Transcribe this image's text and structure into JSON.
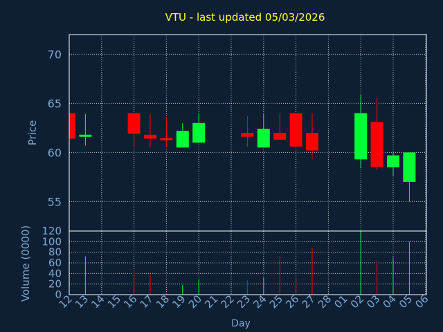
{
  "title": "VTU - last updated 05/03/2026",
  "colors": {
    "background": "#0f1f33",
    "frame": "#ffffff",
    "grid": "#ffffff",
    "axis_text": "#7fa8cf",
    "title": "#ffff33",
    "up": "#00ff33",
    "down": "#ff0000"
  },
  "chart_data": [
    {
      "type": "candlestick",
      "ylabel": "Price",
      "ylim": [
        52,
        72
      ],
      "yticks": [
        55,
        60,
        65,
        70
      ],
      "x_tick_labels": [
        "12",
        "13",
        "14",
        "15",
        "16",
        "17",
        "18",
        "19",
        "20",
        "21",
        "22",
        "23",
        "24",
        "25",
        "26",
        "27",
        "28",
        "01",
        "02",
        "03",
        "04",
        "05",
        "06"
      ],
      "candles": [
        {
          "day": "12",
          "open": 64.0,
          "close": 61.4,
          "high": 64.0,
          "low": 61.4
        },
        {
          "day": "13",
          "open": 61.6,
          "close": 61.8,
          "high": 63.9,
          "low": 60.7
        },
        {
          "day": "16",
          "open": 64.0,
          "close": 61.9,
          "high": 64.0,
          "low": 60.5
        },
        {
          "day": "17",
          "open": 61.8,
          "close": 61.4,
          "high": 63.9,
          "low": 60.5
        },
        {
          "day": "18",
          "open": 61.4,
          "close": 61.3,
          "high": 63.6,
          "low": 60.5
        },
        {
          "day": "19",
          "open": 60.5,
          "close": 62.2,
          "high": 63.0,
          "low": 60.5
        },
        {
          "day": "20",
          "open": 61.0,
          "close": 63.0,
          "high": 64.0,
          "low": 61.0
        },
        {
          "day": "23",
          "open": 62.0,
          "close": 61.6,
          "high": 63.7,
          "low": 60.6
        },
        {
          "day": "24",
          "open": 60.5,
          "close": 62.4,
          "high": 64.0,
          "low": 60.5
        },
        {
          "day": "25",
          "open": 62.0,
          "close": 61.3,
          "high": 64.0,
          "low": 61.3
        },
        {
          "day": "26",
          "open": 64.0,
          "close": 60.6,
          "high": 64.0,
          "low": 60.6
        },
        {
          "day": "27",
          "open": 62.0,
          "close": 60.2,
          "high": 64.0,
          "low": 59.3
        },
        {
          "day": "02",
          "open": 59.3,
          "close": 64.0,
          "high": 65.9,
          "low": 58.4
        },
        {
          "day": "03",
          "open": 63.1,
          "close": 58.5,
          "high": 65.6,
          "low": 58.2
        },
        {
          "day": "04",
          "open": 58.5,
          "close": 59.7,
          "high": 60.0,
          "low": 57.6
        },
        {
          "day": "05",
          "open": 57.0,
          "close": 60.0,
          "high": 60.0,
          "low": 55.0
        }
      ]
    },
    {
      "type": "bar",
      "ylabel": "Volume (0000)",
      "xlabel": "Day",
      "ylim": [
        0,
        120
      ],
      "yticks": [
        0,
        20,
        40,
        60,
        80,
        100,
        120
      ],
      "x_tick_labels": [
        "12",
        "13",
        "14",
        "15",
        "16",
        "17",
        "18",
        "19",
        "20",
        "21",
        "22",
        "23",
        "24",
        "25",
        "26",
        "27",
        "28",
        "01",
        "02",
        "03",
        "04",
        "05",
        "06"
      ],
      "bars": [
        {
          "day": "12",
          "value": 0,
          "direction": "down"
        },
        {
          "day": "13",
          "value": 72,
          "direction": "up"
        },
        {
          "day": "16",
          "value": 46,
          "direction": "down"
        },
        {
          "day": "17",
          "value": 38,
          "direction": "down"
        },
        {
          "day": "18",
          "value": 3,
          "direction": "down"
        },
        {
          "day": "19",
          "value": 18,
          "direction": "up"
        },
        {
          "day": "20",
          "value": 28,
          "direction": "up"
        },
        {
          "day": "23",
          "value": 27,
          "direction": "down"
        },
        {
          "day": "24",
          "value": 32,
          "direction": "up"
        },
        {
          "day": "25",
          "value": 72,
          "direction": "down"
        },
        {
          "day": "26",
          "value": 28,
          "direction": "down"
        },
        {
          "day": "27",
          "value": 88,
          "direction": "down"
        },
        {
          "day": "02",
          "value": 120,
          "direction": "up"
        },
        {
          "day": "03",
          "value": 64,
          "direction": "down"
        },
        {
          "day": "04",
          "value": 70,
          "direction": "up"
        },
        {
          "day": "05",
          "value": 100,
          "direction": "up"
        }
      ]
    }
  ]
}
